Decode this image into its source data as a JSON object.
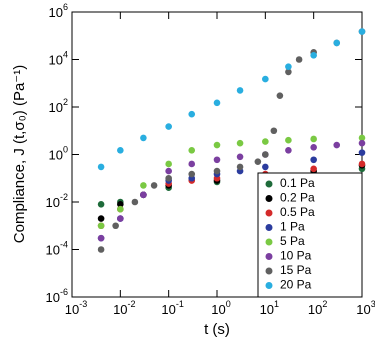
{
  "chart_data": {
    "type": "scatter",
    "xlabel": "t (s)",
    "ylabel": "Compliance, J (t,σ₀) (Pa⁻¹)",
    "xscale": "log",
    "yscale": "log",
    "xlim": [
      0.001,
      1000
    ],
    "ylim": [
      1e-06,
      1000000
    ],
    "xticks": [
      {
        "value": 0.001,
        "label": "10",
        "exponent": "-3"
      },
      {
        "value": 0.01,
        "label": "10",
        "exponent": "-2"
      },
      {
        "value": 0.1,
        "label": "10",
        "exponent": "-1"
      },
      {
        "value": 1,
        "label": "10",
        "exponent": "0"
      },
      {
        "value": 10,
        "label": "10",
        "exponent": "1"
      },
      {
        "value": 100,
        "label": "10",
        "exponent": "2"
      },
      {
        "value": 1000,
        "label": "10",
        "exponent": "3"
      }
    ],
    "yticks": [
      {
        "value": 1e-06,
        "label": "10",
        "exponent": "-6"
      },
      {
        "value": 0.0001,
        "label": "10",
        "exponent": "-4"
      },
      {
        "value": 0.01,
        "label": "10",
        "exponent": "-2"
      },
      {
        "value": 1,
        "label": "10",
        "exponent": "0"
      },
      {
        "value": 100,
        "label": "10",
        "exponent": "2"
      },
      {
        "value": 10000,
        "label": "10",
        "exponent": "4"
      },
      {
        "value": 1000000,
        "label": "10",
        "exponent": "6"
      }
    ],
    "legend": "lower right",
    "series": [
      {
        "name": "0.1 Pa",
        "color": "#1e6b3a",
        "x": [
          0.004,
          0.01,
          0.03,
          0.1,
          1,
          10,
          100,
          1000
        ],
        "values": [
          0.008,
          0.01,
          0.02,
          0.04,
          0.07,
          0.1,
          0.15,
          0.25
        ]
      },
      {
        "name": "0.2 Pa",
        "color": "#000000",
        "x": [
          0.004,
          0.01,
          0.03,
          0.1,
          1,
          10,
          100,
          1000
        ],
        "values": [
          0.002,
          0.008,
          0.02,
          0.05,
          0.08,
          0.12,
          0.2,
          0.35
        ]
      },
      {
        "name": "0.5 Pa",
        "color": "#d42a2a",
        "x": [
          0.004,
          0.01,
          0.03,
          0.1,
          0.3,
          1,
          10,
          100,
          1000
        ],
        "values": [
          0.001,
          0.005,
          0.02,
          0.06,
          0.08,
          0.1,
          0.15,
          0.25,
          0.4
        ]
      },
      {
        "name": "1 Pa",
        "color": "#2b3c9e",
        "x": [
          0.004,
          0.01,
          0.03,
          0.1,
          0.3,
          1,
          3,
          10,
          100,
          1000
        ],
        "values": [
          0.0003,
          0.002,
          0.02,
          0.08,
          0.1,
          0.15,
          0.2,
          0.3,
          0.6,
          1.2
        ]
      },
      {
        "name": "5 Pa",
        "color": "#7ac943",
        "x": [
          0.004,
          0.01,
          0.03,
          0.1,
          0.3,
          1,
          3,
          10,
          30,
          100,
          1000
        ],
        "values": [
          0.001,
          0.005,
          0.05,
          0.4,
          1.5,
          2.5,
          3,
          3.5,
          4,
          4.5,
          5
        ]
      },
      {
        "name": "10 Pa",
        "color": "#7b3fa0",
        "x": [
          0.004,
          0.01,
          0.03,
          0.1,
          0.3,
          1,
          3,
          10,
          30,
          100,
          300,
          1000
        ],
        "values": [
          0.0003,
          0.002,
          0.02,
          0.2,
          0.4,
          0.6,
          0.8,
          1,
          1.5,
          2,
          2.5,
          3
        ]
      },
      {
        "name": "15 Pa",
        "color": "#606060",
        "x": [
          0.004,
          0.008,
          0.02,
          0.05,
          0.1,
          0.3,
          1,
          3,
          7,
          10,
          15,
          20,
          30,
          50,
          100,
          300,
          1000
        ],
        "values": [
          0.0001,
          0.001,
          0.01,
          0.05,
          0.1,
          0.15,
          0.2,
          0.3,
          0.5,
          1,
          10,
          300,
          3000,
          10000,
          20000,
          50000,
          150000
        ]
      },
      {
        "name": "20 Pa",
        "color": "#29aee0",
        "x": [
          0.004,
          0.01,
          0.03,
          0.1,
          0.3,
          1,
          3,
          10,
          30,
          100,
          300,
          1000
        ],
        "values": [
          0.3,
          1.5,
          5,
          15,
          50,
          150,
          500,
          1500,
          5000,
          15000,
          50000,
          150000
        ]
      }
    ]
  }
}
